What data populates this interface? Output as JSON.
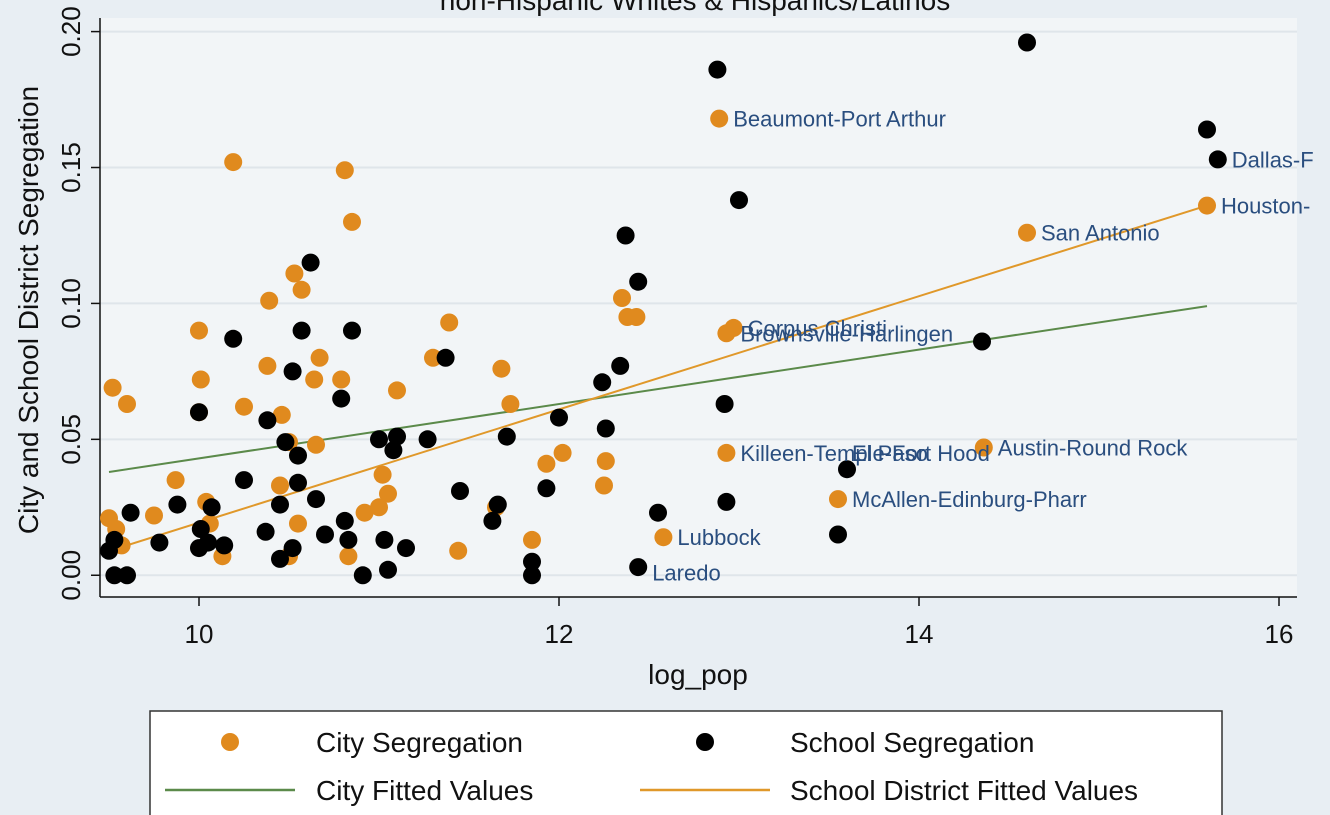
{
  "chart_data": {
    "type": "scatter",
    "title": "non-Hispanic Whites & Hispanics/Latinos",
    "xlabel": "log_pop",
    "ylabel": "City and School District Segregation",
    "xlim": [
      9.45,
      16.1
    ],
    "ylim": [
      -0.008,
      0.205
    ],
    "xticks": [
      10,
      12,
      14,
      16
    ],
    "xtick_labels": [
      "10",
      "12",
      "14",
      "16"
    ],
    "yticks": [
      0,
      0.05,
      0.1,
      0.15,
      0.2
    ],
    "ytick_labels": [
      "0.00",
      "0.05",
      "0.10",
      "0.15",
      "0.20"
    ],
    "grid": true,
    "legend_placement": "bottom",
    "colors": {
      "city": "#e08a1e",
      "school": "#000000",
      "city_fit": "#5b8a4a",
      "school_fit": "#e0982a",
      "label": "#2a4e7f",
      "plot_bg": "#f2f5f7",
      "outer_bg": "#e8eef3"
    },
    "series": [
      {
        "name": "City Segregation",
        "kind": "scatter",
        "points": [
          [
            9.52,
            0.069
          ],
          [
            9.6,
            0.063
          ],
          [
            9.5,
            0.021
          ],
          [
            9.54,
            0.017
          ],
          [
            9.57,
            0.011
          ],
          [
            9.75,
            0.022
          ],
          [
            9.87,
            0.035
          ],
          [
            10.0,
            0.09
          ],
          [
            10.01,
            0.072
          ],
          [
            10.0,
            0.06
          ],
          [
            10.04,
            0.027
          ],
          [
            10.06,
            0.019
          ],
          [
            10.13,
            0.007
          ],
          [
            10.19,
            0.152
          ],
          [
            10.25,
            0.062
          ],
          [
            10.38,
            0.077
          ],
          [
            10.39,
            0.101
          ],
          [
            10.46,
            0.059
          ],
          [
            10.53,
            0.111
          ],
          [
            10.57,
            0.105
          ],
          [
            10.45,
            0.033
          ],
          [
            10.5,
            0.049
          ],
          [
            10.5,
            0.007
          ],
          [
            10.55,
            0.019
          ],
          [
            10.64,
            0.072
          ],
          [
            10.67,
            0.08
          ],
          [
            10.65,
            0.048
          ],
          [
            10.79,
            0.072
          ],
          [
            10.81,
            0.149
          ],
          [
            10.85,
            0.13
          ],
          [
            10.83,
            0.007
          ],
          [
            10.92,
            0.023
          ],
          [
            11.0,
            0.025
          ],
          [
            11.02,
            0.037
          ],
          [
            11.05,
            0.03
          ],
          [
            11.1,
            0.068
          ],
          [
            11.3,
            0.08
          ],
          [
            11.39,
            0.093
          ],
          [
            11.44,
            0.009
          ],
          [
            11.68,
            0.076
          ],
          [
            11.73,
            0.063
          ],
          [
            11.65,
            0.025
          ],
          [
            11.85,
            0.013
          ],
          [
            11.93,
            0.041
          ],
          [
            12.02,
            0.045
          ],
          [
            12.26,
            0.042
          ],
          [
            12.25,
            0.033
          ],
          [
            12.35,
            0.102
          ],
          [
            12.38,
            0.095
          ],
          [
            12.43,
            0.095
          ],
          [
            12.58,
            0.014
          ],
          [
            12.89,
            0.168
          ],
          [
            12.93,
            0.089
          ],
          [
            12.97,
            0.091
          ],
          [
            12.93,
            0.045
          ],
          [
            13.55,
            0.028
          ],
          [
            14.36,
            0.047
          ],
          [
            14.6,
            0.126
          ],
          [
            15.6,
            0.136
          ]
        ]
      },
      {
        "name": "School Segregation",
        "kind": "scatter",
        "points": [
          [
            9.5,
            0.009
          ],
          [
            9.53,
            0.013
          ],
          [
            9.53,
            0.0
          ],
          [
            9.6,
            0.0
          ],
          [
            9.62,
            0.023
          ],
          [
            9.78,
            0.012
          ],
          [
            9.88,
            0.026
          ],
          [
            10.0,
            0.06
          ],
          [
            10.01,
            0.017
          ],
          [
            10.0,
            0.01
          ],
          [
            10.05,
            0.012
          ],
          [
            10.07,
            0.025
          ],
          [
            10.14,
            0.011
          ],
          [
            10.19,
            0.087
          ],
          [
            10.25,
            0.035
          ],
          [
            10.38,
            0.057
          ],
          [
            10.37,
            0.016
          ],
          [
            10.45,
            0.026
          ],
          [
            10.45,
            0.006
          ],
          [
            10.48,
            0.049
          ],
          [
            10.52,
            0.075
          ],
          [
            10.52,
            0.01
          ],
          [
            10.55,
            0.044
          ],
          [
            10.55,
            0.034
          ],
          [
            10.57,
            0.09
          ],
          [
            10.62,
            0.115
          ],
          [
            10.65,
            0.028
          ],
          [
            10.7,
            0.015
          ],
          [
            10.79,
            0.065
          ],
          [
            10.81,
            0.02
          ],
          [
            10.83,
            0.013
          ],
          [
            10.85,
            0.09
          ],
          [
            10.91,
            0.0
          ],
          [
            11.0,
            0.05
          ],
          [
            11.03,
            0.013
          ],
          [
            11.05,
            0.002
          ],
          [
            11.08,
            0.046
          ],
          [
            11.1,
            0.051
          ],
          [
            11.15,
            0.01
          ],
          [
            11.27,
            0.05
          ],
          [
            11.37,
            0.08
          ],
          [
            11.45,
            0.031
          ],
          [
            11.63,
            0.02
          ],
          [
            11.66,
            0.026
          ],
          [
            11.71,
            0.051
          ],
          [
            11.85,
            0.005
          ],
          [
            11.85,
            0.0
          ],
          [
            11.93,
            0.032
          ],
          [
            12.0,
            0.058
          ],
          [
            12.24,
            0.071
          ],
          [
            12.26,
            0.054
          ],
          [
            12.34,
            0.077
          ],
          [
            12.37,
            0.125
          ],
          [
            12.44,
            0.108
          ],
          [
            12.44,
            0.003
          ],
          [
            12.55,
            0.023
          ],
          [
            12.88,
            0.186
          ],
          [
            12.92,
            0.063
          ],
          [
            12.93,
            0.027
          ],
          [
            13.0,
            0.138
          ],
          [
            13.55,
            0.015
          ],
          [
            13.6,
            0.039
          ],
          [
            14.35,
            0.086
          ],
          [
            14.6,
            0.196
          ],
          [
            15.6,
            0.164
          ],
          [
            15.66,
            0.153
          ]
        ]
      },
      {
        "name": "City Fitted Values",
        "kind": "line",
        "points": [
          [
            9.5,
            0.038
          ],
          [
            15.6,
            0.099
          ]
        ]
      },
      {
        "name": "School District Fitted Values",
        "kind": "line",
        "points": [
          [
            9.55,
            0.01
          ],
          [
            15.6,
            0.136
          ]
        ]
      }
    ],
    "annotations": [
      {
        "text": "Beaumont-Port Arthur",
        "x": 12.89,
        "y": 0.168
      },
      {
        "text": "Dallas-F",
        "x": 15.66,
        "y": 0.153
      },
      {
        "text": "Houston-",
        "x": 15.6,
        "y": 0.136
      },
      {
        "text": "San Antonio",
        "x": 14.6,
        "y": 0.126
      },
      {
        "text": "Corpus Christi",
        "x": 12.97,
        "y": 0.091
      },
      {
        "text": "Brownsville-Harlingen",
        "x": 12.93,
        "y": 0.089
      },
      {
        "text": "Killeen-Temple-Fort Hood",
        "x": 12.93,
        "y": 0.045
      },
      {
        "text": "El Paso",
        "x": 13.55,
        "y": 0.045
      },
      {
        "text": "Austin-Round Rock",
        "x": 14.36,
        "y": 0.047
      },
      {
        "text": "McAllen-Edinburg-Pharr",
        "x": 13.55,
        "y": 0.028
      },
      {
        "text": "Lubbock",
        "x": 12.58,
        "y": 0.014
      },
      {
        "text": "Laredo",
        "x": 12.44,
        "y": 0.001
      }
    ],
    "legend": {
      "entries": [
        {
          "label": "City Segregation",
          "symbol": "dot",
          "series": 0
        },
        {
          "label": "School Segregation",
          "symbol": "dot",
          "series": 1
        },
        {
          "label": "City Fitted Values",
          "symbol": "line",
          "series": 2
        },
        {
          "label": "School District Fitted Values",
          "symbol": "line",
          "series": 3
        }
      ]
    }
  }
}
